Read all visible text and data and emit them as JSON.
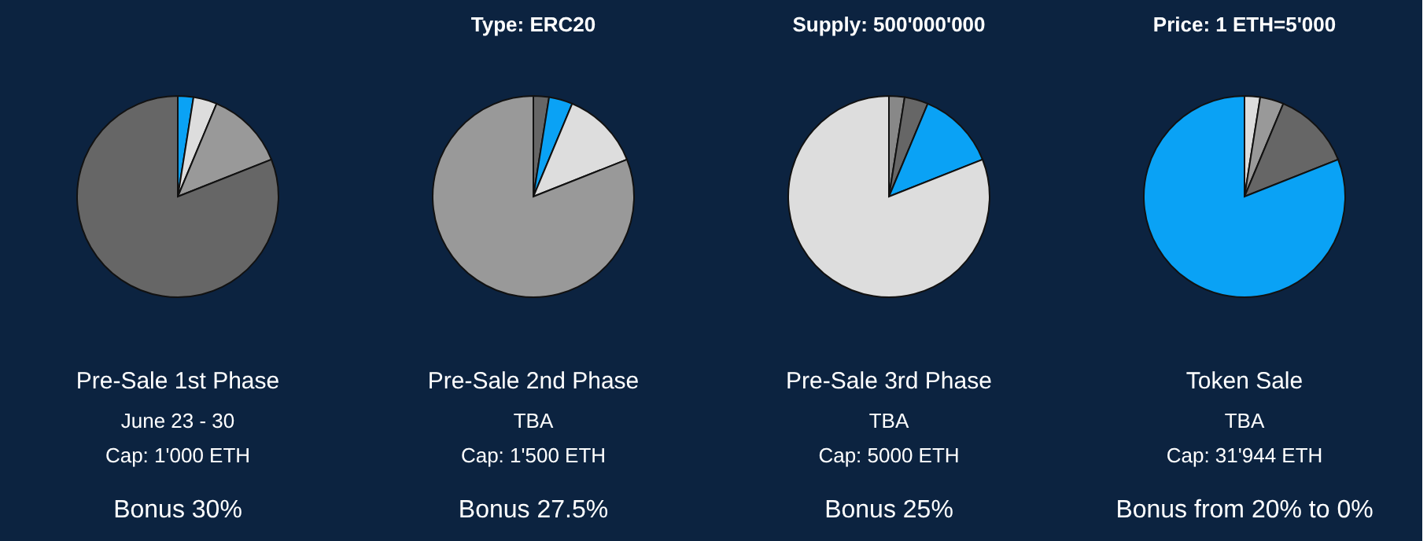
{
  "chart_data": [
    {
      "type": "pie",
      "title": "Pre-Sale 1st Phase",
      "categories": [
        null,
        null,
        null,
        null
      ],
      "values": [
        2.5,
        3.8,
        12.7,
        81.0
      ],
      "colors": [
        "#0aa2f5",
        "#dddddd",
        "#999999",
        "#666666"
      ],
      "annotations": [
        "June 23 - 30",
        "Cap: 1'000 ETH",
        "Bonus 30%"
      ]
    },
    {
      "type": "pie",
      "title": "Pre-Sale 2nd Phase",
      "subtitle": "Type: ERC20",
      "categories": [
        null,
        null,
        null,
        null
      ],
      "values": [
        2.5,
        3.8,
        12.7,
        81.0
      ],
      "colors": [
        "#666666",
        "#0aa2f5",
        "#dddddd",
        "#999999"
      ],
      "annotations": [
        "TBA",
        "Cap: 1'500 ETH",
        "Bonus 27.5%"
      ]
    },
    {
      "type": "pie",
      "title": "Pre-Sale 3rd Phase",
      "subtitle": "Supply: 500'000'000",
      "categories": [
        null,
        null,
        null,
        null
      ],
      "values": [
        2.5,
        3.8,
        12.7,
        81.0
      ],
      "colors": [
        "#888888",
        "#666666",
        "#0aa2f5",
        "#dddddd"
      ],
      "annotations": [
        "TBA",
        "Cap: 5000 ETH",
        "Bonus 25%"
      ]
    },
    {
      "type": "pie",
      "title": "Token Sale",
      "subtitle": "Price: 1 ETH=5'000",
      "categories": [
        null,
        null,
        null,
        null
      ],
      "values": [
        2.5,
        3.8,
        12.7,
        81.0
      ],
      "colors": [
        "#dddddd",
        "#999999",
        "#666666",
        "#0aa2f5"
      ],
      "annotations": [
        "TBA",
        "Cap: 31'944 ETH",
        "Bonus from 20% to 0%"
      ]
    }
  ]
}
